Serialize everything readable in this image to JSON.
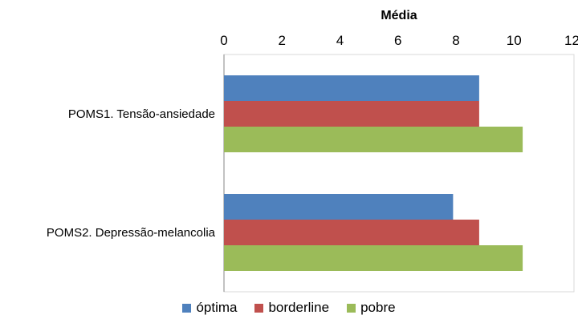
{
  "chart_data": {
    "type": "bar",
    "orientation": "horizontal",
    "title": "",
    "xlabel": "Média",
    "ylabel": "",
    "xlim": [
      0,
      12
    ],
    "x_ticks": [
      0,
      2,
      4,
      6,
      8,
      10,
      12
    ],
    "x_axis_position": "top",
    "grid": false,
    "legend": "bottom",
    "categories": [
      "POMS1. Tensão-ansiedade",
      "POMS2. Depressão-melancolia"
    ],
    "series": [
      {
        "name": "óptima",
        "color": "#4f81bd",
        "values": [
          8.8,
          7.9
        ]
      },
      {
        "name": "borderline",
        "color": "#c0504d",
        "values": [
          8.8,
          8.8
        ]
      },
      {
        "name": "pobre",
        "color": "#9bbb59",
        "values": [
          10.3,
          10.3
        ]
      }
    ]
  }
}
